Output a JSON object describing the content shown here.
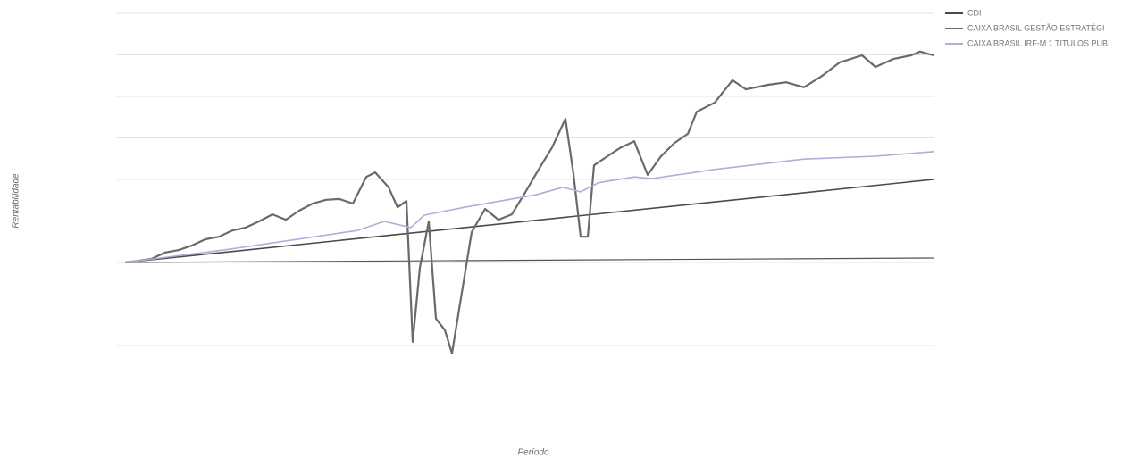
{
  "chart_data": {
    "type": "line",
    "y_label": "Rentabilidade",
    "x_label": "Período",
    "xlim": [
      0,
      100
    ],
    "ylim": [
      -3,
      6
    ],
    "yticks": [
      -3,
      -2,
      -1,
      0,
      1,
      2,
      3,
      4,
      5,
      6
    ],
    "grid": true,
    "legend": "top-right",
    "series": [
      {
        "name": "CDI",
        "color": "#4a4a4a",
        "x": [
          0,
          100
        ],
        "values": [
          0,
          2.0
        ]
      },
      {
        "name": "CAIXA BRASIL GESTÃO ESTRATÉGI",
        "color": "#6a6a6a",
        "x": [
          0,
          1.66,
          3.31,
          4.97,
          6.63,
          8.29,
          9.94,
          11.6,
          13.26,
          14.92,
          16.57,
          18.23,
          19.89,
          21.55,
          23.2,
          24.86,
          26.52,
          28.18,
          29.83,
          30.94,
          32.6,
          33.7,
          34.81,
          35.58,
          36.46,
          37.57,
          38.45,
          39.56,
          40.44,
          41.44,
          42.87,
          44.53,
          46.19,
          47.85,
          49.5,
          51.16,
          52.82,
          54.48,
          55.47,
          56.35,
          57.24,
          58.01,
          59.67,
          61.33,
          62.98,
          64.64,
          66.3,
          67.96,
          69.61,
          70.72,
          72.93,
          75.14,
          76.8,
          79.56,
          81.77,
          83.98,
          86.19,
          88.4,
          91.16,
          92.82,
          95.03,
          97.24,
          98.34,
          100
        ],
        "values": [
          0,
          0.04,
          0.09,
          0.24,
          0.3,
          0.41,
          0.56,
          0.62,
          0.77,
          0.84,
          0.99,
          1.16,
          1.03,
          1.25,
          1.42,
          1.51,
          1.53,
          1.42,
          2.06,
          2.17,
          1.81,
          1.33,
          1.48,
          -1.91,
          -0.13,
          0.99,
          -1.35,
          -1.63,
          -2.19,
          -0.99,
          0.73,
          1.29,
          1.03,
          1.16,
          1.69,
          2.24,
          2.77,
          3.46,
          2.13,
          0.62,
          0.62,
          2.34,
          2.56,
          2.77,
          2.92,
          2.11,
          2.56,
          2.88,
          3.1,
          3.63,
          3.85,
          4.39,
          4.17,
          4.28,
          4.34,
          4.22,
          4.49,
          4.82,
          4.99,
          4.71,
          4.9,
          4.99,
          5.08,
          4.99
        ]
      },
      {
        "name": "CAIXA BRASIL IRF-M 1 TITULOS PUB",
        "color": "#b9a8da",
        "x": [
          0,
          12.15,
          28.73,
          32.04,
          35.36,
          37.02,
          41.99,
          46.41,
          50.83,
          54.14,
          56.35,
          58.56,
          62.98,
          65.19,
          72.93,
          83.98,
          92.82,
          100
        ],
        "values": [
          0,
          0.3,
          0.77,
          0.99,
          0.84,
          1.14,
          1.33,
          1.48,
          1.63,
          1.81,
          1.7,
          1.92,
          2.06,
          2.02,
          2.24,
          2.49,
          2.56,
          2.67
        ]
      }
    ]
  }
}
